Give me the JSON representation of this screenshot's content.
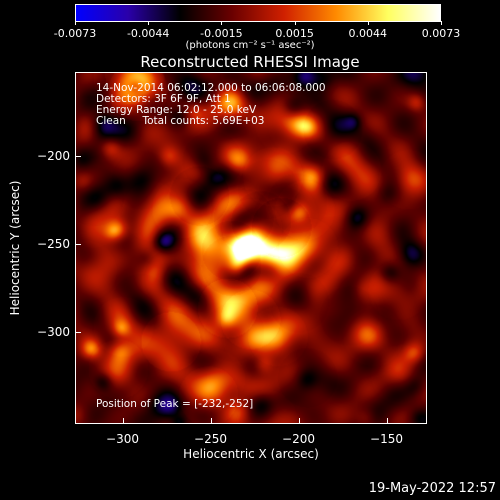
{
  "colorbar": {
    "ticks": [
      "-0.0073",
      "-0.0044",
      "-0.0015",
      "0.0015",
      "0.0044",
      "0.0073"
    ],
    "units": "(photons cm⁻² s⁻¹ asec⁻²)",
    "colors": [
      "#0000ff",
      "#2a00aa",
      "#000000",
      "#6a0000",
      "#d02000",
      "#ff8a00",
      "#ffff60",
      "#ffffff"
    ]
  },
  "title": "Reconstructed RHESSI Image",
  "info_lines": [
    "14-Nov-2014 06:02:12.000 to 06:06:08.000",
    "Detectors: 3F 6F 9F, Att 1",
    "Energy Range: 12.0 - 25.0 keV",
    "Clean     Total counts: 5.69E+03"
  ],
  "peak_label": "Position of Peak = [-232,-252]",
  "chart_data": {
    "type": "heatmap",
    "title": "Reconstructed RHESSI Image",
    "xlabel": "Heliocentric X (arcsec)",
    "ylabel": "Heliocentric Y (arcsec)",
    "xlim": [
      -327,
      -127
    ],
    "ylim": [
      -352,
      -152
    ],
    "x_ticks": [
      -300,
      -250,
      -200,
      -150
    ],
    "y_ticks": [
      -200,
      -250,
      -300
    ],
    "peak": [
      -232,
      -252
    ],
    "value_range": [
      -0.0073,
      0.0073
    ]
  },
  "footer_timestamp": "19-May-2022 12:57"
}
